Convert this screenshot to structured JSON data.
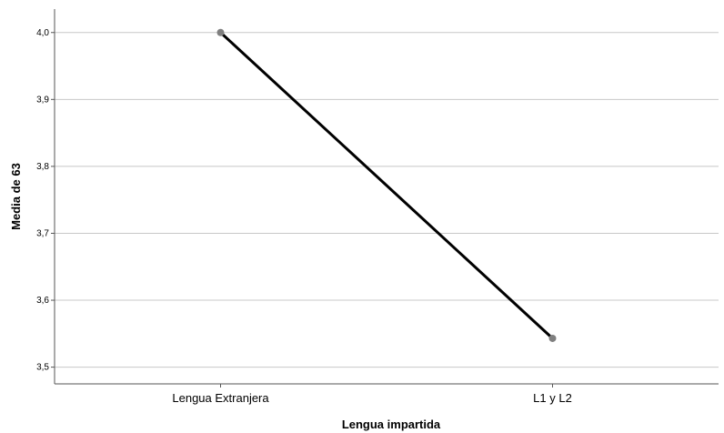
{
  "chart_data": {
    "type": "line",
    "title": "",
    "xlabel": "Lengua impartida",
    "ylabel": "Media de 63",
    "categories": [
      "Lengua Extranjera",
      "L1 y L2"
    ],
    "series": [
      {
        "values": [
          4.0,
          3.543
        ]
      }
    ],
    "ylim": [
      3.475,
      4.035
    ],
    "yticks": [
      "3,5",
      "3,6",
      "3,7",
      "3,8",
      "3,9",
      "4,0"
    ],
    "ytick_values": [
      3.5,
      3.6,
      3.7,
      3.8,
      3.9,
      4.0
    ],
    "grid": true,
    "colors": {
      "line": "#000000",
      "marker": "#7f7f7f",
      "grid": "#c8c8c8",
      "axis": "#555555"
    }
  }
}
